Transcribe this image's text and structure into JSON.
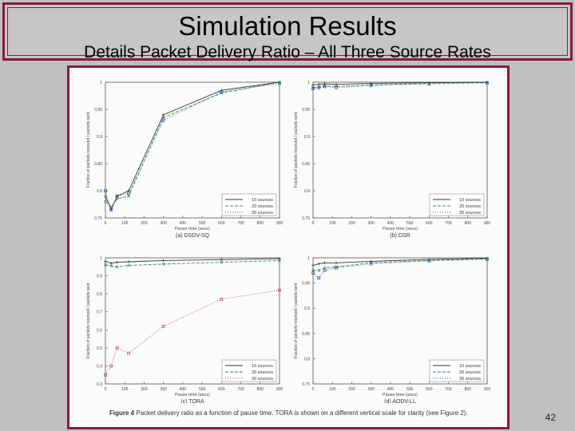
{
  "slide": {
    "title": "Simulation Results",
    "subtitle": "Details Packet Delivery Ratio – All Three Source Rates",
    "page_number": "42"
  },
  "figure": {
    "caption_label": "Figure 4",
    "caption_text": "Packet delivery ratio as a function of pause time. TORA is shown on a different vertical scale for clarity (see Figure 2)."
  },
  "chart_data": [
    {
      "type": "line",
      "caption": "(a) DSDV-SQ",
      "xlabel": "Pause time (secs)",
      "ylabel": "Fraction of packets received / packets sent",
      "xlim": [
        0,
        900
      ],
      "ylim": [
        0.75,
        1
      ],
      "x_ticks": [
        "0",
        "100",
        "200",
        "300",
        "400",
        "500",
        "600",
        "700",
        "800",
        "900"
      ],
      "y_ticks": [
        "0.75",
        "0.8",
        "0.85",
        "0.9",
        "0.95",
        "1"
      ],
      "legend": "bottom-right",
      "series": [
        {
          "name": "10 sources",
          "x": [
            0,
            30,
            60,
            120,
            300,
            600,
            900
          ],
          "y": [
            0.79,
            0.765,
            0.79,
            0.8,
            0.94,
            0.985,
            1.0
          ],
          "color": "#333333"
        },
        {
          "name": "20 sources",
          "x": [
            0,
            30,
            60,
            120,
            300,
            600,
            900
          ],
          "y": [
            0.78,
            0.77,
            0.785,
            0.79,
            0.935,
            0.98,
            1.0
          ],
          "color": "#2e8b57"
        },
        {
          "name": "30 sources",
          "x": [
            0,
            30,
            60,
            120,
            300,
            600,
            900
          ],
          "y": [
            0.8,
            0.765,
            0.79,
            0.795,
            0.93,
            0.982,
            0.998
          ],
          "color": "#2b4fa3"
        }
      ]
    },
    {
      "type": "line",
      "caption": "(b) DSR",
      "xlabel": "Pause time (secs)",
      "ylabel": "Fraction of packets received / packets sent",
      "xlim": [
        0,
        900
      ],
      "ylim": [
        0.75,
        1
      ],
      "x_ticks": [
        "0",
        "100",
        "200",
        "300",
        "400",
        "500",
        "600",
        "700",
        "800",
        "900"
      ],
      "y_ticks": [
        "0.75",
        "0.8",
        "0.85",
        "0.9",
        "0.95",
        "1"
      ],
      "legend": "bottom-right",
      "series": [
        {
          "name": "10 sources",
          "x": [
            0,
            30,
            60,
            120,
            300,
            600,
            900
          ],
          "y": [
            0.995,
            0.996,
            0.997,
            0.996,
            0.998,
            0.999,
            1.0
          ],
          "color": "#333333"
        },
        {
          "name": "20 sources",
          "x": [
            0,
            30,
            60,
            120,
            300,
            600,
            900
          ],
          "y": [
            0.99,
            0.991,
            0.993,
            0.992,
            0.995,
            0.998,
            0.999
          ],
          "color": "#2e8b57"
        },
        {
          "name": "30 sources",
          "x": [
            0,
            30,
            60,
            120,
            300,
            600,
            900
          ],
          "y": [
            0.988,
            0.99,
            0.992,
            0.99,
            0.994,
            0.997,
            0.999
          ],
          "color": "#2b4fa3"
        }
      ]
    },
    {
      "type": "line",
      "caption": "(c) TORA",
      "xlabel": "Pause time (secs)",
      "ylabel": "Fraction of packets received / packets sent",
      "xlim": [
        0,
        900
      ],
      "ylim": [
        0.3,
        1
      ],
      "x_ticks": [
        "0",
        "100",
        "200",
        "300",
        "400",
        "500",
        "600",
        "700",
        "800",
        "900"
      ],
      "y_ticks": [
        "0.3",
        "0.4",
        "0.5",
        "0.6",
        "0.7",
        "0.8",
        "0.9",
        "1"
      ],
      "legend": "bottom-right",
      "series": [
        {
          "name": "10 sources",
          "x": [
            0,
            30,
            60,
            120,
            300,
            600,
            900
          ],
          "y": [
            0.98,
            0.97,
            0.975,
            0.978,
            0.985,
            0.99,
            0.995
          ],
          "color": "#333333"
        },
        {
          "name": "20 sources",
          "x": [
            0,
            30,
            60,
            120,
            300,
            600,
            900
          ],
          "y": [
            0.96,
            0.955,
            0.95,
            0.958,
            0.965,
            0.975,
            0.985
          ],
          "color": "#2e8b57"
        },
        {
          "name": "30 sources",
          "x": [
            0,
            30,
            60,
            120,
            300,
            600,
            900
          ],
          "y": [
            0.35,
            0.4,
            0.5,
            0.47,
            0.62,
            0.77,
            0.82
          ],
          "color": "#b03a7a"
        }
      ]
    },
    {
      "type": "line",
      "caption": "(d) AODV-LL",
      "xlabel": "Pause time (secs)",
      "ylabel": "Fraction of packets received / packets sent",
      "xlim": [
        0,
        900
      ],
      "ylim": [
        0.75,
        1
      ],
      "x_ticks": [
        "0",
        "100",
        "200",
        "300",
        "400",
        "500",
        "600",
        "700",
        "800",
        "900"
      ],
      "y_ticks": [
        "0.75",
        "0.8",
        "0.85",
        "0.9",
        "0.95",
        "1"
      ],
      "legend": "bottom-right",
      "series": [
        {
          "name": "10 sources",
          "x": [
            0,
            30,
            60,
            120,
            300,
            600,
            900
          ],
          "y": [
            0.985,
            0.988,
            0.99,
            0.99,
            0.993,
            0.997,
            0.999
          ],
          "color": "#333333"
        },
        {
          "name": "20 sources",
          "x": [
            0,
            30,
            60,
            120,
            300,
            600,
            900
          ],
          "y": [
            0.975,
            0.975,
            0.98,
            0.982,
            0.99,
            0.995,
            0.998
          ],
          "color": "#2e8b57"
        },
        {
          "name": "30 sources",
          "x": [
            0,
            30,
            60,
            120,
            300,
            600,
            900
          ],
          "y": [
            0.97,
            0.96,
            0.975,
            0.98,
            0.988,
            0.994,
            0.997
          ],
          "color": "#2b4fa3"
        }
      ]
    }
  ]
}
